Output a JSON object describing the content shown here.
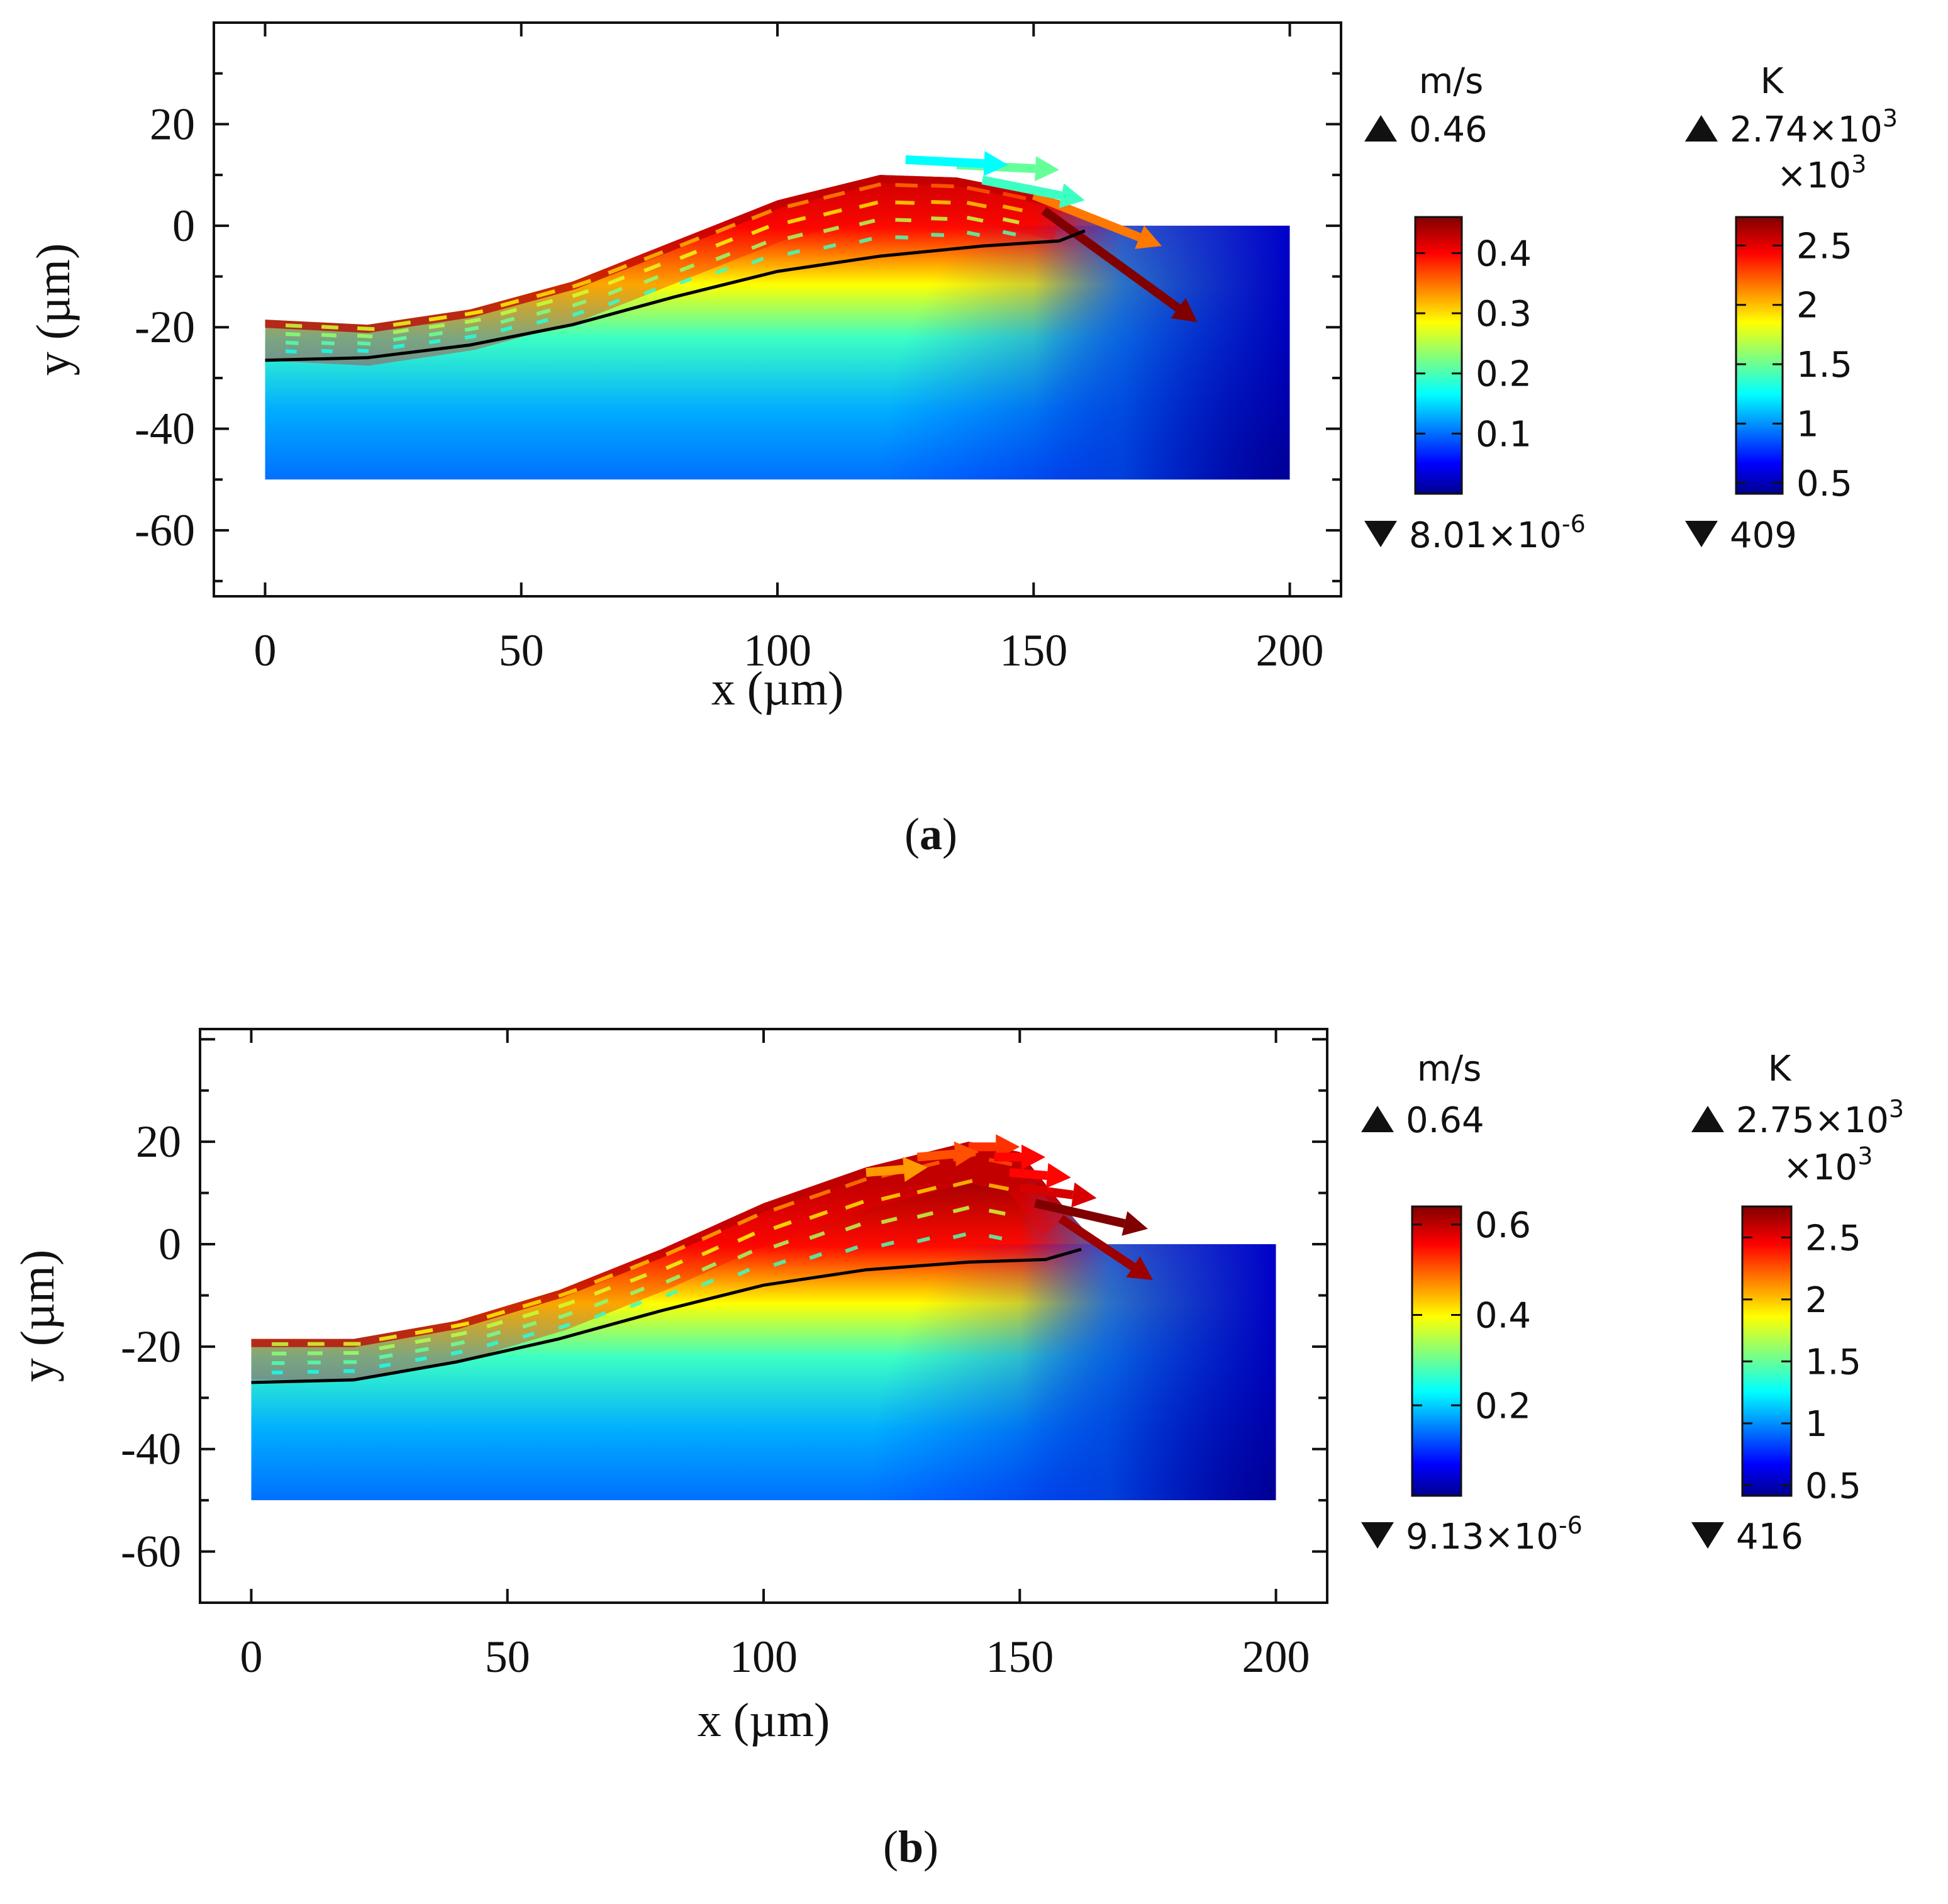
{
  "colors": {
    "jet": [
      "#00008f",
      "#0000ff",
      "#00ffff",
      "#ffff00",
      "#ff0000",
      "#800000"
    ],
    "frame": "#111111",
    "interface_line": "#000000",
    "background": "#ffffff"
  },
  "chart_data": [
    {
      "type": "heatmap",
      "panel": "a",
      "caption": "a",
      "xlabel": "x (µm)",
      "ylabel": "y (µm)",
      "xlim": [
        -10,
        210
      ],
      "ylim": [
        -73,
        40
      ],
      "xticks": [
        0,
        50,
        100,
        150,
        200
      ],
      "xtick_labels": [
        "0",
        "50",
        "100",
        "150",
        "200"
      ],
      "yticks": [
        20,
        0,
        -20,
        -40,
        -60
      ],
      "ytick_labels": [
        "20",
        "0",
        "-20",
        "-40",
        "-60"
      ],
      "grid": false,
      "surface_profile": [
        [
          0,
          -18.5
        ],
        [
          20,
          -19.5
        ],
        [
          40,
          -16.5
        ],
        [
          60,
          -11
        ],
        [
          80,
          -3
        ],
        [
          100,
          5
        ],
        [
          120,
          10
        ],
        [
          135,
          9.5
        ],
        [
          145,
          7.5
        ],
        [
          155,
          5
        ],
        [
          165,
          0
        ],
        [
          200,
          0
        ]
      ],
      "interface_line": [
        [
          0,
          -26.5
        ],
        [
          20,
          -26
        ],
        [
          40,
          -23.5
        ],
        [
          60,
          -19.5
        ],
        [
          80,
          -14
        ],
        [
          100,
          -9
        ],
        [
          120,
          -6
        ],
        [
          140,
          -4
        ],
        [
          155,
          -3
        ],
        [
          160,
          -1
        ]
      ],
      "velocity": {
        "unit": "m/s",
        "max_label": "0.46",
        "min_label": "8.01×10",
        "min_exp": "-6",
        "colorbar_ticks": [
          "0.1",
          "0.2",
          "0.3",
          "0.4"
        ],
        "colorbar_tick_values": [
          0.1,
          0.2,
          0.3,
          0.4
        ],
        "range": [
          0,
          0.46
        ]
      },
      "temperature": {
        "unit": "K",
        "max_label": "2.74×10",
        "max_exp": "3",
        "multiplier": "×10",
        "multiplier_exp": "3",
        "min_label": "409",
        "colorbar_ticks": [
          "0.5",
          "1",
          "1.5",
          "2",
          "2.5"
        ],
        "colorbar_tick_values": [
          0.5,
          1,
          1.5,
          2,
          2.5
        ],
        "range": [
          0.409,
          2.74
        ]
      },
      "flow_arrows": [
        {
          "x0": 150,
          "y0": 6,
          "x1": 175,
          "y1": -4,
          "v": 0.34
        },
        {
          "x0": 152,
          "y0": 3,
          "x1": 182,
          "y1": -19,
          "v": 0.46
        },
        {
          "x0": 140,
          "y0": 9,
          "x1": 160,
          "y1": 5,
          "v": 0.18
        },
        {
          "x0": 135,
          "y0": 12,
          "x1": 155,
          "y1": 11,
          "v": 0.2
        },
        {
          "x0": 125,
          "y0": 13,
          "x1": 145,
          "y1": 12,
          "v": 0.15
        }
      ]
    },
    {
      "type": "heatmap",
      "panel": "b",
      "caption": "b",
      "xlabel": "x (µm)",
      "ylabel": "y (µm)",
      "xlim": [
        -10,
        210
      ],
      "ylim": [
        -70,
        42
      ],
      "xticks": [
        0,
        50,
        100,
        150,
        200
      ],
      "xtick_labels": [
        "0",
        "50",
        "100",
        "150",
        "200"
      ],
      "yticks": [
        20,
        0,
        -20,
        -40,
        -60
      ],
      "ytick_labels": [
        "20",
        "0",
        "-20",
        "-40",
        "-60"
      ],
      "grid": false,
      "surface_profile": [
        [
          0,
          -18.5
        ],
        [
          20,
          -18.5
        ],
        [
          40,
          -15
        ],
        [
          60,
          -9
        ],
        [
          80,
          -1
        ],
        [
          100,
          8
        ],
        [
          120,
          15
        ],
        [
          140,
          20
        ],
        [
          150,
          18
        ],
        [
          158,
          8
        ],
        [
          165,
          0
        ],
        [
          200,
          0
        ]
      ],
      "interface_line": [
        [
          0,
          -27
        ],
        [
          20,
          -26.5
        ],
        [
          40,
          -23
        ],
        [
          60,
          -18.5
        ],
        [
          80,
          -13
        ],
        [
          100,
          -8
        ],
        [
          120,
          -5
        ],
        [
          140,
          -3.5
        ],
        [
          155,
          -3
        ],
        [
          162,
          -1
        ]
      ],
      "velocity": {
        "unit": "m/s",
        "max_label": "0.64",
        "min_label": "9.13×10",
        "min_exp": "-6",
        "colorbar_ticks": [
          "0.2",
          "0.4",
          "0.6"
        ],
        "colorbar_tick_values": [
          0.2,
          0.4,
          0.6
        ],
        "range": [
          0,
          0.64
        ]
      },
      "temperature": {
        "unit": "K",
        "max_label": "2.75×10",
        "max_exp": "3",
        "multiplier": "×10",
        "multiplier_exp": "3",
        "min_label": "416",
        "colorbar_ticks": [
          "0.5",
          "1",
          "1.5",
          "2",
          "2.5"
        ],
        "colorbar_tick_values": [
          0.5,
          1,
          1.5,
          2,
          2.5
        ],
        "range": [
          0.416,
          2.75
        ]
      },
      "flow_arrows": [
        {
          "x0": 140,
          "y0": 19,
          "x1": 150,
          "y1": 19,
          "v": 0.52
        },
        {
          "x0": 145,
          "y0": 17,
          "x1": 155,
          "y1": 17,
          "v": 0.55
        },
        {
          "x0": 148,
          "y0": 14,
          "x1": 160,
          "y1": 13,
          "v": 0.55
        },
        {
          "x0": 150,
          "y0": 11,
          "x1": 165,
          "y1": 9,
          "v": 0.58
        },
        {
          "x0": 153,
          "y0": 8,
          "x1": 175,
          "y1": 3,
          "v": 0.64
        },
        {
          "x0": 158,
          "y0": 5,
          "x1": 176,
          "y1": -7,
          "v": 0.62
        },
        {
          "x0": 130,
          "y0": 17,
          "x1": 142,
          "y1": 18,
          "v": 0.5
        },
        {
          "x0": 120,
          "y0": 14,
          "x1": 132,
          "y1": 15,
          "v": 0.45
        }
      ]
    }
  ]
}
